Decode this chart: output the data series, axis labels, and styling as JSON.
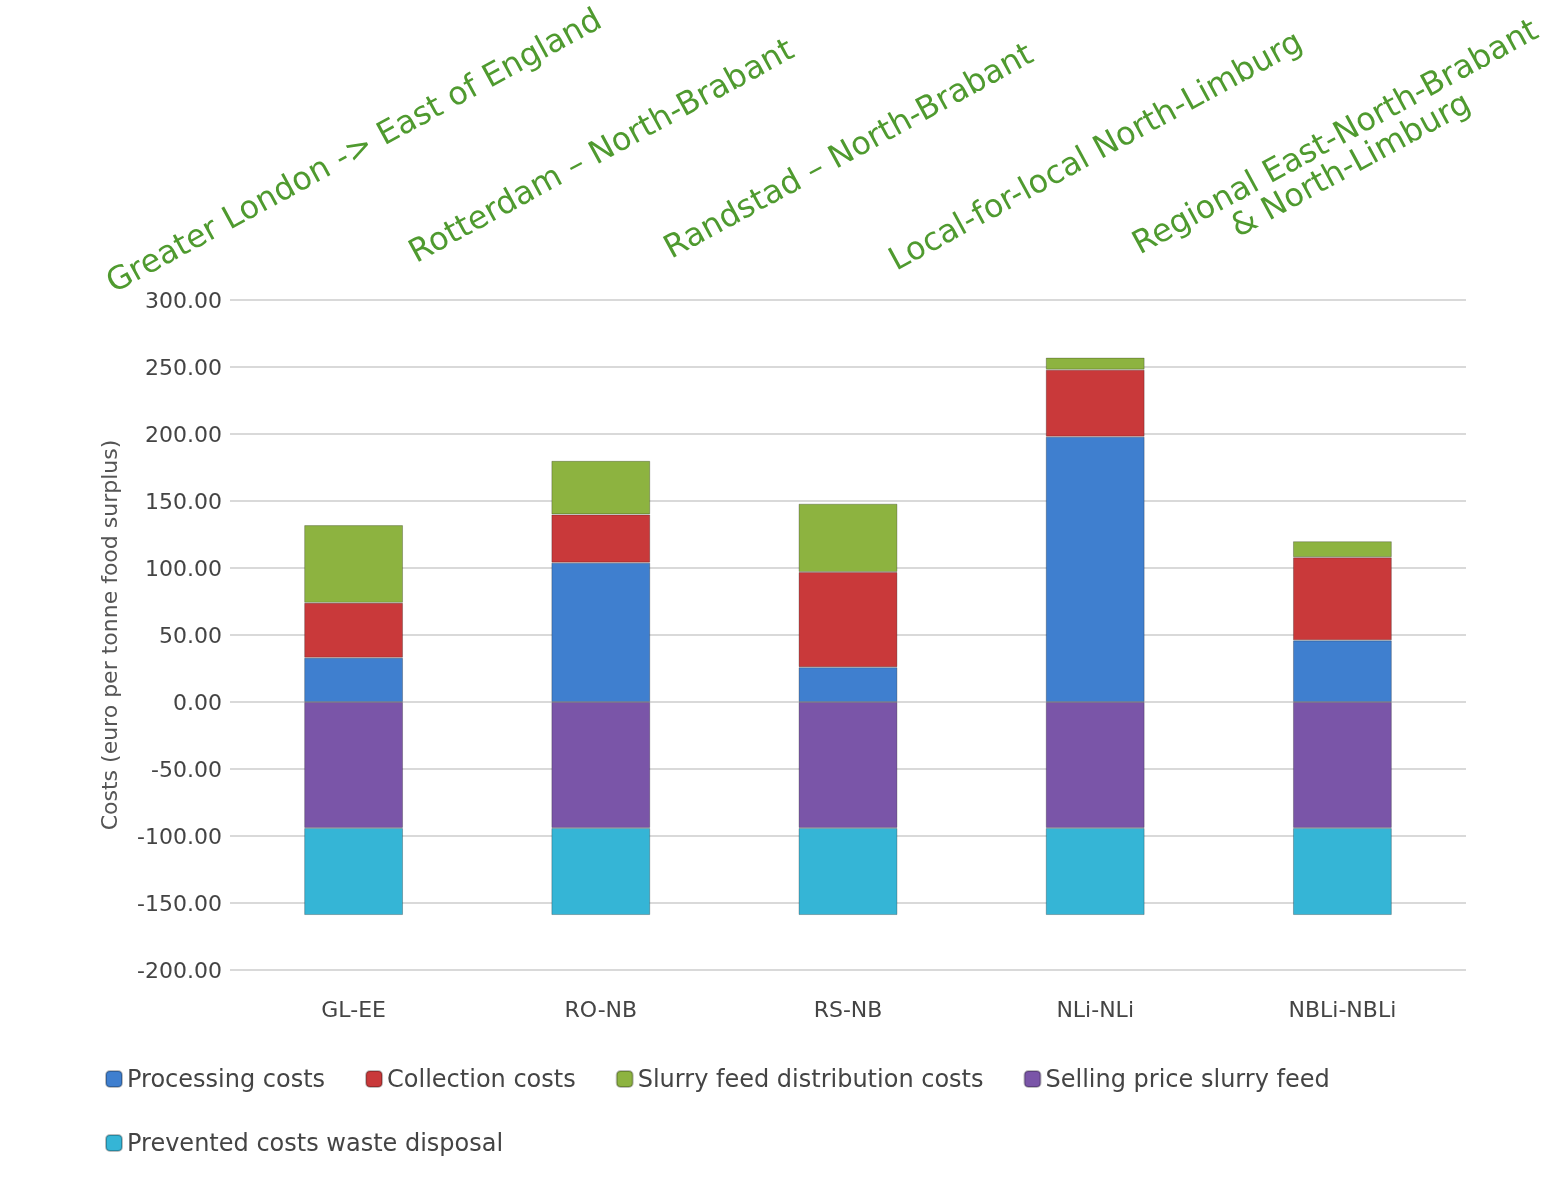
{
  "chart_data": {
    "type": "bar",
    "stacked": true,
    "ylabel": "Costs (euro per tonne food surplus)",
    "categories": [
      "GL-EE",
      "RO-NB",
      "RS-NB",
      "NLi-NLi",
      "NBLi-NBLi"
    ],
    "series": [
      {
        "name": "Processing costs",
        "color": "#3f7fcf",
        "values": [
          33,
          104,
          26,
          198,
          46
        ]
      },
      {
        "name": "Collection costs",
        "color": "#c9393a",
        "values": [
          41,
          36,
          71,
          50,
          62
        ]
      },
      {
        "name": "Slurry feed distribution costs",
        "color": "#8db340",
        "values": [
          58,
          40,
          51,
          9,
          12
        ]
      },
      {
        "name": "Selling price slurry feed",
        "color": "#7a55a8",
        "values": [
          -94,
          -94,
          -94,
          -94,
          -94
        ]
      },
      {
        "name": "Prevented costs waste disposal",
        "color": "#35b5d6",
        "values": [
          -65,
          -65,
          -65,
          -65,
          -65
        ]
      }
    ],
    "ylim": [
      -200,
      300
    ],
    "yticks": [
      {
        "value": -200,
        "label": "-200.00"
      },
      {
        "value": -150,
        "label": "-150.00"
      },
      {
        "value": -100,
        "label": "-100.00"
      },
      {
        "value": -50,
        "label": "-50.00"
      },
      {
        "value": 0,
        "label": "0.00"
      },
      {
        "value": 50,
        "label": "50.00"
      },
      {
        "value": 100,
        "label": "100.00"
      },
      {
        "value": 150,
        "label": "150.00"
      },
      {
        "value": 200,
        "label": "200.00"
      },
      {
        "value": 250,
        "label": "250.00"
      },
      {
        "value": 300,
        "label": "300.00"
      }
    ],
    "grid": "y",
    "legend": "bottom",
    "annotations": [
      "Greater London -> East of England",
      "Rotterdam – North-Brabant",
      "Randstad – North-Brabant",
      "Local-for-local North-Limburg",
      "Regional East-North-Brabant\n& North-Limburg"
    ]
  }
}
